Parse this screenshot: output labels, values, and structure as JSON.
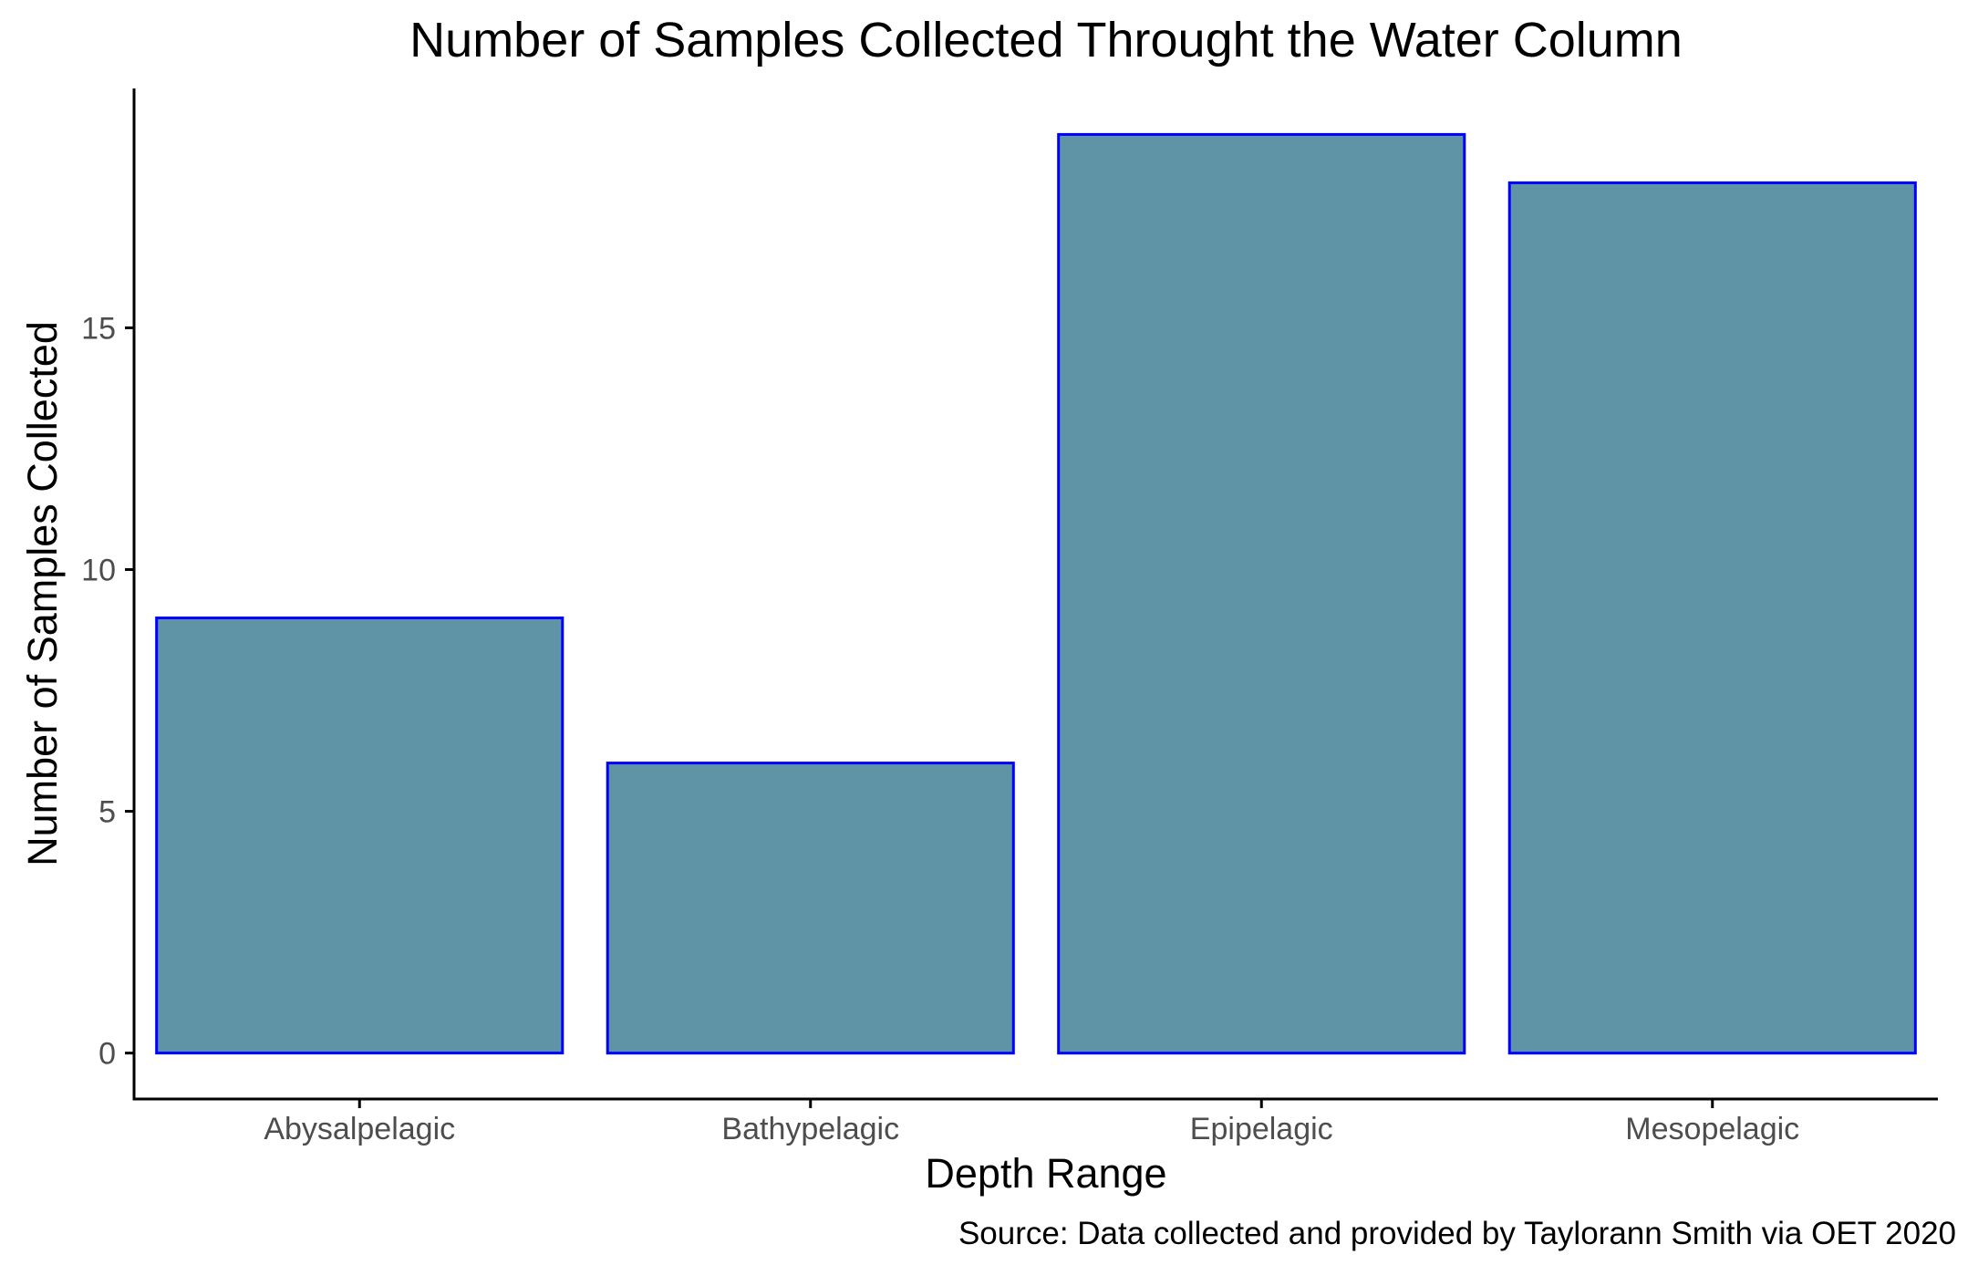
{
  "chart_data": {
    "type": "bar",
    "title": "Number of Samples Collected Throught the Water Column",
    "xlabel": "Depth Range",
    "ylabel": "Number of Samples Collected",
    "caption": "Source: Data collected and provided by Taylorann Smith via OET 2020",
    "categories": [
      "Abysalpelagic",
      "Bathypelagic",
      "Epipelagic",
      "Mesopelagic"
    ],
    "values": [
      9,
      6,
      19,
      18
    ],
    "ylim": [
      -0.95,
      19.95
    ],
    "yticks": [
      0,
      5,
      10,
      15
    ],
    "grid": false,
    "legend": "none",
    "colors": {
      "bar_fill": "#5F93A6",
      "bar_outline": "#0000FF",
      "axis": "#000000",
      "tick_label": "#4D4D4D"
    }
  }
}
